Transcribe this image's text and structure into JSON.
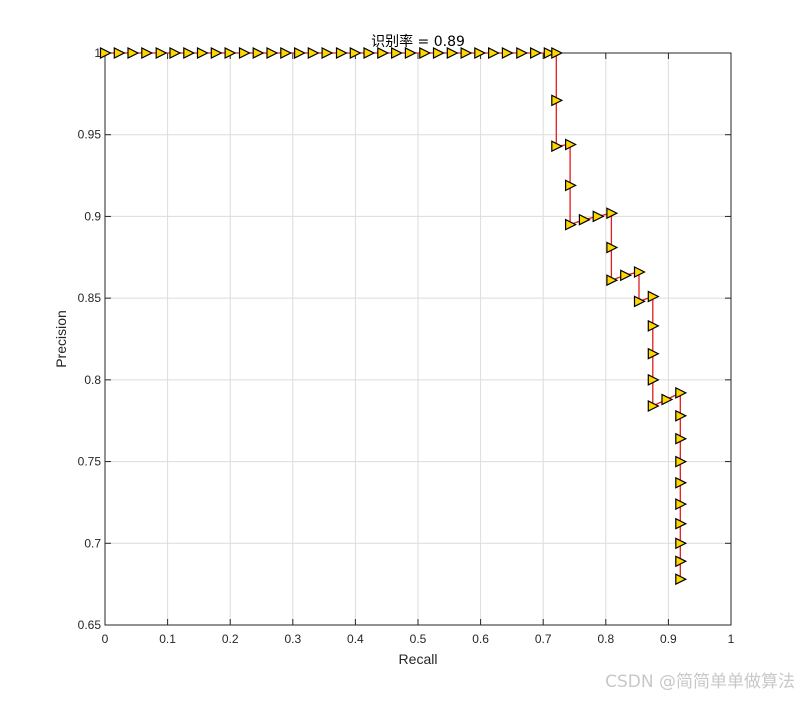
{
  "chart_data": {
    "type": "line",
    "title": "识别率 = 0.89",
    "xlabel": "Recall",
    "ylabel": "Precision",
    "xlim": [
      0,
      1
    ],
    "ylim": [
      0.65,
      1
    ],
    "xticks": [
      "0",
      "0.1",
      "0.2",
      "0.3",
      "0.4",
      "0.5",
      "0.6",
      "0.7",
      "0.8",
      "0.9",
      "1"
    ],
    "yticks": [
      "0.65",
      "0.7",
      "0.75",
      "0.8",
      "0.85",
      "0.9",
      "0.95",
      "1"
    ],
    "grid": true,
    "line_color": "#e41a1c",
    "marker": "triangle-right",
    "marker_fill": "#ffd700",
    "marker_edge": "#000000",
    "series": [
      {
        "points": [
          [
            0.0,
            1.0
          ],
          [
            0.022,
            1.0
          ],
          [
            0.044,
            1.0
          ],
          [
            0.066,
            1.0
          ],
          [
            0.089,
            1.0
          ],
          [
            0.111,
            1.0
          ],
          [
            0.133,
            1.0
          ],
          [
            0.155,
            1.0
          ],
          [
            0.177,
            1.0
          ],
          [
            0.199,
            1.0
          ],
          [
            0.222,
            1.0
          ],
          [
            0.244,
            1.0
          ],
          [
            0.266,
            1.0
          ],
          [
            0.288,
            1.0
          ],
          [
            0.31,
            1.0
          ],
          [
            0.332,
            1.0
          ],
          [
            0.354,
            1.0
          ],
          [
            0.377,
            1.0
          ],
          [
            0.399,
            1.0
          ],
          [
            0.421,
            1.0
          ],
          [
            0.443,
            1.0
          ],
          [
            0.465,
            1.0
          ],
          [
            0.487,
            1.0
          ],
          [
            0.51,
            1.0
          ],
          [
            0.532,
            1.0
          ],
          [
            0.554,
            1.0
          ],
          [
            0.576,
            1.0
          ],
          [
            0.598,
            1.0
          ],
          [
            0.62,
            1.0
          ],
          [
            0.642,
            1.0
          ],
          [
            0.665,
            1.0
          ],
          [
            0.687,
            1.0
          ],
          [
            0.709,
            1.0
          ],
          [
            0.721,
            1.0
          ],
          [
            0.721,
            0.971
          ],
          [
            0.721,
            0.943
          ],
          [
            0.743,
            0.944
          ],
          [
            0.743,
            0.919
          ],
          [
            0.743,
            0.895
          ],
          [
            0.765,
            0.898
          ],
          [
            0.787,
            0.9
          ],
          [
            0.809,
            0.902
          ],
          [
            0.809,
            0.881
          ],
          [
            0.809,
            0.861
          ],
          [
            0.831,
            0.864
          ],
          [
            0.853,
            0.866
          ],
          [
            0.853,
            0.848
          ],
          [
            0.875,
            0.851
          ],
          [
            0.875,
            0.833
          ],
          [
            0.875,
            0.816
          ],
          [
            0.875,
            0.8
          ],
          [
            0.875,
            0.784
          ],
          [
            0.897,
            0.788
          ],
          [
            0.919,
            0.792
          ],
          [
            0.919,
            0.778
          ],
          [
            0.919,
            0.764
          ],
          [
            0.919,
            0.75
          ],
          [
            0.919,
            0.737
          ],
          [
            0.919,
            0.724
          ],
          [
            0.919,
            0.712
          ],
          [
            0.919,
            0.7
          ],
          [
            0.919,
            0.689
          ],
          [
            0.919,
            0.678
          ]
        ]
      }
    ]
  },
  "watermark": "CSDN @简简单单做算法"
}
